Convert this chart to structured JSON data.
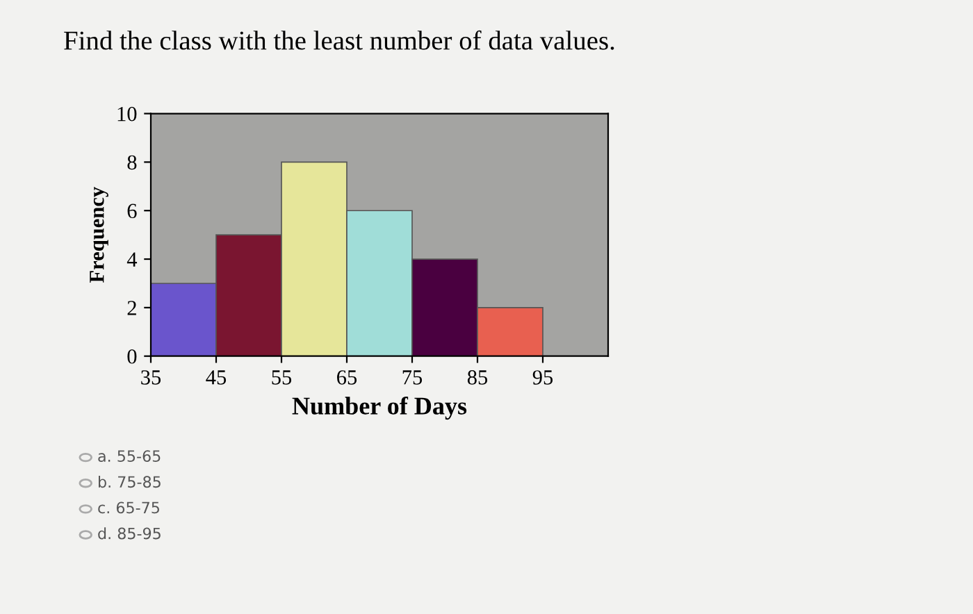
{
  "chart_data": {
    "type": "histogram",
    "title": "Find the class with the least number of data values.",
    "xlabel": "Number of Days",
    "ylabel": "Frequency",
    "bins": [
      35,
      45,
      55,
      65,
      75,
      85,
      95
    ],
    "values": [
      3,
      5,
      8,
      6,
      4,
      2
    ],
    "colors": [
      "#6a55cc",
      "#7a1530",
      "#e6e69a",
      "#a0ddd8",
      "#4a0040",
      "#e86050"
    ],
    "xlim": [
      35,
      105
    ],
    "xticks": [
      35,
      45,
      55,
      65,
      75,
      85,
      95
    ],
    "ylim": [
      0,
      10
    ],
    "yticks": [
      0,
      2,
      4,
      6,
      8,
      10
    ],
    "grid": false,
    "annotations": [
      "a. 55-65",
      "b. 75-85",
      "c. 65-75",
      "d. 85-95"
    ]
  }
}
